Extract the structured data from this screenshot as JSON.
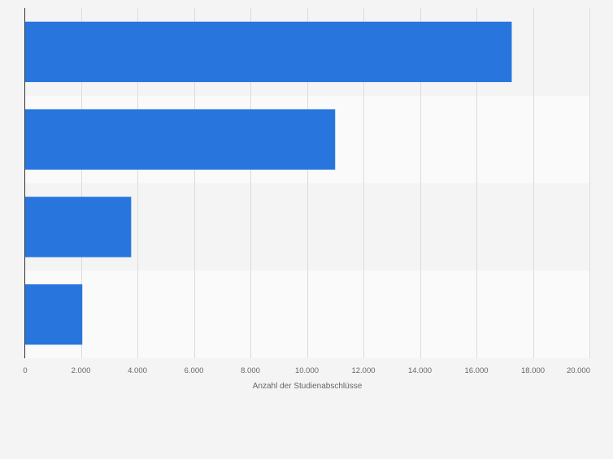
{
  "chart_data": {
    "type": "bar",
    "orientation": "horizontal",
    "categories": [
      "",
      "",
      "",
      ""
    ],
    "values": [
      17250,
      11000,
      3780,
      2050
    ],
    "title": "",
    "xlabel": "Anzahl der Studienabschlüsse",
    "ylabel": "",
    "xlim": [
      0,
      20000
    ],
    "x_ticks": [
      0,
      2000,
      4000,
      6000,
      8000,
      10000,
      12000,
      14000,
      16000,
      18000,
      20000
    ],
    "x_tick_labels": [
      "0",
      "2.000",
      "4.000",
      "6.000",
      "8.000",
      "10.000",
      "12.000",
      "14.000",
      "16.000",
      "18.000",
      "20.000"
    ],
    "grid": true,
    "legend": "none",
    "colors": {
      "bar": "#2876dd",
      "background": "#f4f4f4",
      "band_alt": "#fafafa",
      "grid": "#dcdcdc",
      "axis": "#333333",
      "text": "#666666"
    }
  }
}
